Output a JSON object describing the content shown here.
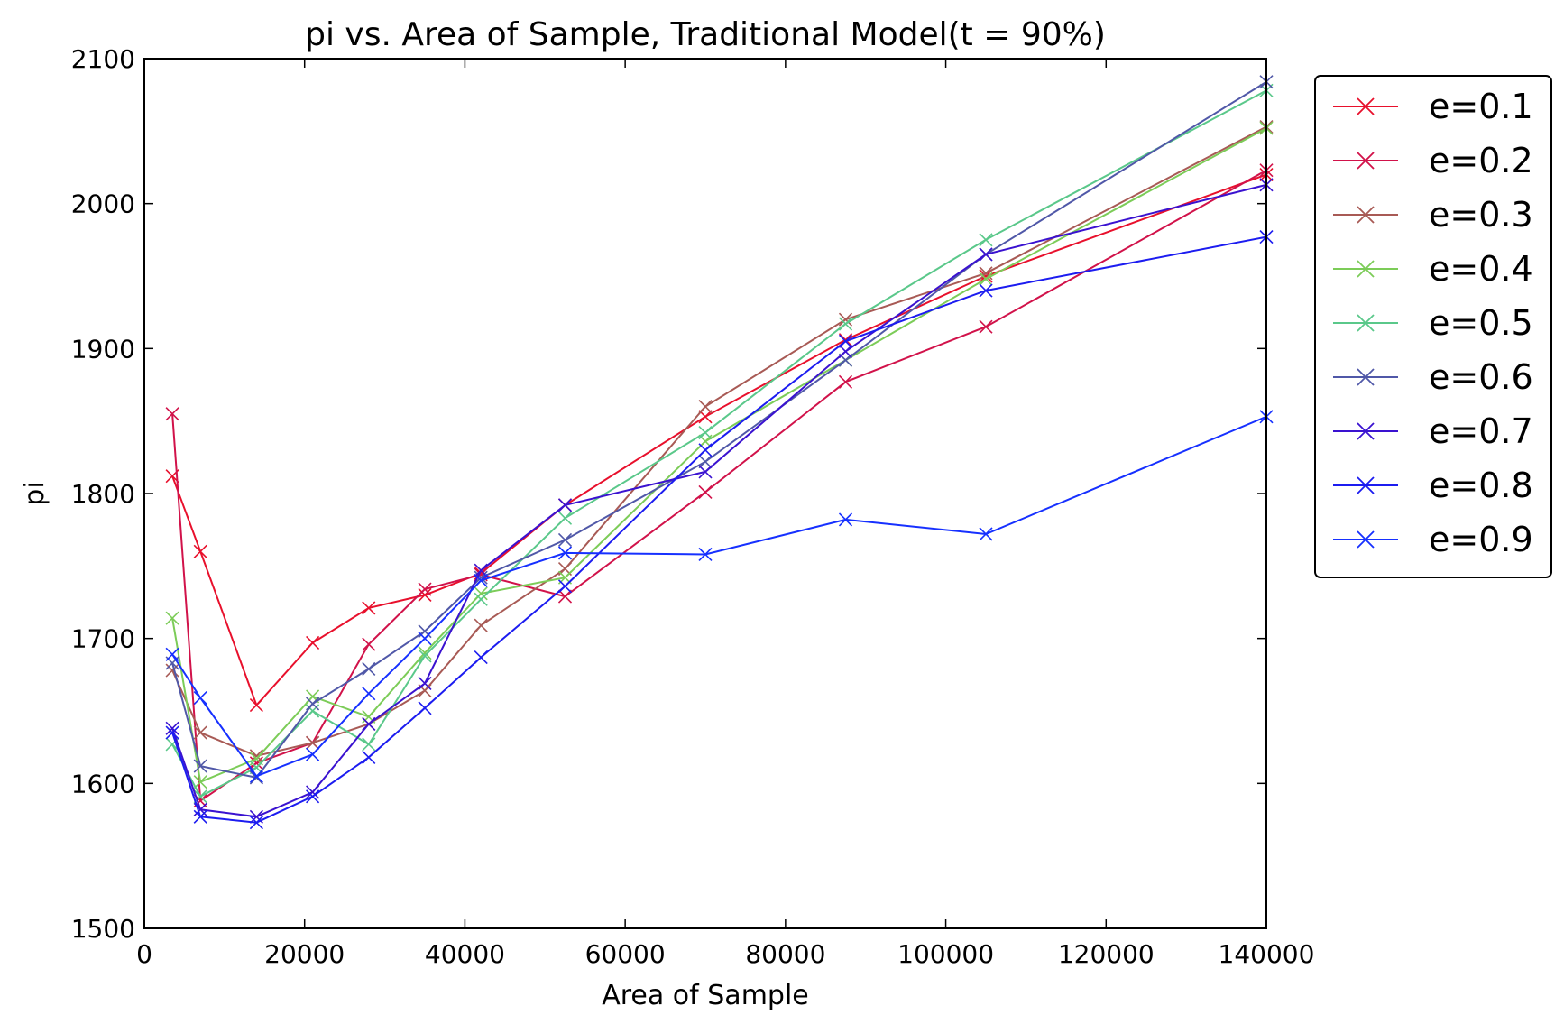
{
  "chart_data": {
    "type": "line",
    "title": "pi vs. Area of Sample, Traditional Model(t = 90%)",
    "xlabel": "Area of Sample",
    "ylabel": "pi",
    "xlim": [
      0,
      140000
    ],
    "ylim": [
      1500,
      2100
    ],
    "xticks": [
      0,
      20000,
      40000,
      60000,
      80000,
      100000,
      120000,
      140000
    ],
    "yticks": [
      1500,
      1600,
      1700,
      1800,
      1900,
      2000,
      2100
    ],
    "x": [
      3500,
      7000,
      14000,
      21000,
      28000,
      35000,
      42000,
      52500,
      70000,
      87500,
      105000,
      140000
    ],
    "marker": "x",
    "grid": false,
    "legend_position": "outside right",
    "series": [
      {
        "name": "e=0.1",
        "color": "#e8102c",
        "values": [
          1812,
          1760,
          1654,
          1697,
          1721,
          1730,
          1745,
          1792,
          1853,
          1906,
          1950,
          2020
        ]
      },
      {
        "name": "e=0.2",
        "color": "#d1124a",
        "values": [
          1855,
          1588,
          1614,
          1628,
          1696,
          1734,
          1744,
          1729,
          1801,
          1877,
          1915,
          2023
        ]
      },
      {
        "name": "e=0.3",
        "color": "#a85a55",
        "values": [
          1678,
          1635,
          1619,
          1628,
          1641,
          1664,
          1709,
          1748,
          1860,
          1920,
          1952,
          2053
        ]
      },
      {
        "name": "e=0.4",
        "color": "#7ccc58",
        "values": [
          1714,
          1601,
          1617,
          1660,
          1646,
          1690,
          1731,
          1742,
          1836,
          1892,
          1948,
          2052
        ]
      },
      {
        "name": "e=0.5",
        "color": "#5ac88a",
        "values": [
          1627,
          1591,
          1611,
          1650,
          1627,
          1688,
          1727,
          1783,
          1842,
          1917,
          1975,
          2078
        ]
      },
      {
        "name": "e=0.6",
        "color": "#5058a8",
        "values": [
          1683,
          1612,
          1604,
          1655,
          1679,
          1705,
          1742,
          1768,
          1822,
          1892,
          1965,
          2084
        ]
      },
      {
        "name": "e=0.7",
        "color": "#3a12d0",
        "values": [
          1638,
          1582,
          1577,
          1594,
          1641,
          1669,
          1747,
          1792,
          1815,
          1898,
          1965,
          2013
        ]
      },
      {
        "name": "e=0.8",
        "color": "#1c1cf0",
        "values": [
          1635,
          1577,
          1573,
          1591,
          1618,
          1652,
          1687,
          1736,
          1830,
          1905,
          1940,
          1977
        ]
      },
      {
        "name": "e=0.9",
        "color": "#1630ff",
        "values": [
          1689,
          1659,
          1605,
          1620,
          1662,
          1700,
          1740,
          1759,
          1758,
          1782,
          1772,
          1853
        ]
      }
    ]
  }
}
